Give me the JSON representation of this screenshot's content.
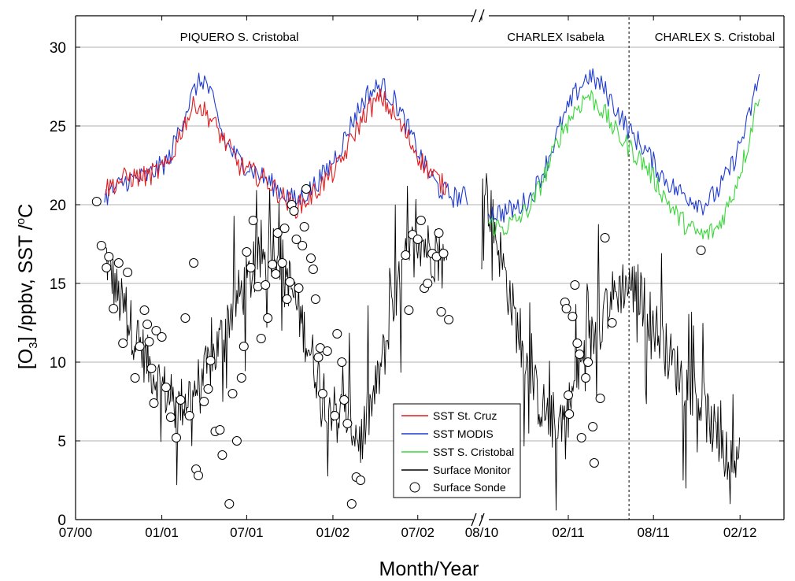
{
  "chart_data": {
    "type": "line",
    "xlabel": "Month/Year",
    "ylabel_parts": [
      "[O",
      "3",
      "] /ppbv, SST /",
      "o",
      "C"
    ],
    "ylim": [
      0,
      32
    ],
    "yticks": [
      0,
      5,
      10,
      15,
      20,
      25,
      30
    ],
    "grid": "horizontal",
    "axis_break": "between 07/02 and 08/10",
    "legend_position": "bottom-center",
    "panels": [
      {
        "label": "PIQUERO S. Cristobal",
        "xlim": [
          "2000-07-01",
          "2002-11-01"
        ]
      },
      {
        "label": "CHARLEX Isabela",
        "xlim": [
          "2010-08-01",
          "2011-06-10"
        ]
      },
      {
        "label": "CHARLEX S. Cristobal",
        "xlim": [
          "2011-06-10",
          "2012-05-01"
        ]
      }
    ],
    "xticks": [
      {
        "label": "07/00",
        "date": "2000-07-01"
      },
      {
        "label": "01/01",
        "date": "2001-01-01"
      },
      {
        "label": "07/01",
        "date": "2001-07-01"
      },
      {
        "label": "01/02",
        "date": "2002-01-01"
      },
      {
        "label": "07/02",
        "date": "2002-07-01"
      },
      {
        "label": "08/10",
        "date": "2010-08-01"
      },
      {
        "label": "02/11",
        "date": "2011-02-01"
      },
      {
        "label": "08/11",
        "date": "2011-08-01"
      },
      {
        "label": "02/12",
        "date": "2012-02-01"
      }
    ],
    "series": [
      {
        "name": "SST St. Cruz",
        "color": "#e41a1c",
        "kind": "line",
        "segments": [
          {
            "x": [
              "2000-09-01",
              "2000-10-15",
              "2000-12-01",
              "2001-01-15",
              "2001-02-15",
              "2001-03-15",
              "2001-04-15",
              "2001-05-15",
              "2001-06-15",
              "2001-07-15",
              "2001-08-15",
              "2001-09-15",
              "2001-10-15",
              "2001-11-15",
              "2001-12-15",
              "2002-01-15",
              "2002-02-15",
              "2002-03-15",
              "2002-04-15",
              "2002-05-15",
              "2002-06-15",
              "2002-07-15",
              "2002-08-15",
              "2002-09-01"
            ],
            "y": [
              21.0,
              21.7,
              21.8,
              22.5,
              25.0,
              26.5,
              25.5,
              24.0,
              22.5,
              22.0,
              21.5,
              20.5,
              19.8,
              20.5,
              21.5,
              22.5,
              24.5,
              26.0,
              26.8,
              25.5,
              24.0,
              22.5,
              21.5,
              21.0
            ]
          }
        ]
      },
      {
        "name": "SST MODIS",
        "color": "#1f3bd0",
        "kind": "line",
        "segments": [
          {
            "x": [
              "2000-09-01",
              "2000-10-15",
              "2000-12-01",
              "2001-01-15",
              "2001-02-15",
              "2001-03-15",
              "2001-04-01",
              "2001-04-15",
              "2001-05-15",
              "2001-06-15",
              "2001-07-15",
              "2001-08-15",
              "2001-09-15",
              "2001-10-15",
              "2001-11-15",
              "2001-12-15",
              "2002-01-15",
              "2002-02-15",
              "2002-03-15",
              "2002-04-15",
              "2002-05-15",
              "2002-06-15",
              "2002-07-15",
              "2002-08-15",
              "2002-09-15",
              "2002-10-15"
            ],
            "y": [
              20.5,
              21.5,
              21.8,
              22.8,
              25.5,
              27.5,
              28.0,
              27.0,
              24.0,
              22.8,
              22.2,
              21.5,
              20.8,
              20.2,
              21.0,
              22.0,
              23.5,
              25.5,
              27.0,
              27.6,
              26.5,
              24.5,
              22.5,
              21.0,
              20.5,
              20.5
            ]
          },
          {
            "x": [
              "2010-08-15",
              "2010-09-15",
              "2010-10-15",
              "2010-11-15",
              "2010-12-15",
              "2011-01-15",
              "2011-02-15",
              "2011-03-15",
              "2011-04-15",
              "2011-05-15",
              "2011-06-15",
              "2011-07-15",
              "2011-08-15",
              "2011-09-15",
              "2011-10-15",
              "2011-11-15",
              "2011-12-15",
              "2012-01-15",
              "2012-02-15",
              "2012-03-15"
            ],
            "y": [
              19.5,
              19.5,
              19.8,
              20.5,
              22.5,
              25.0,
              27.0,
              28.2,
              27.5,
              26.0,
              24.5,
              23.5,
              22.0,
              21.0,
              20.5,
              20.0,
              20.8,
              22.5,
              25.0,
              28.5
            ]
          }
        ]
      },
      {
        "name": "SST S. Cristobal",
        "color": "#3bd63b",
        "kind": "line",
        "segments": [
          {
            "x": [
              "2010-08-15",
              "2010-09-15",
              "2010-10-15",
              "2010-11-15",
              "2010-12-15",
              "2011-01-15",
              "2011-02-15",
              "2011-03-15",
              "2011-04-15",
              "2011-05-15",
              "2011-06-15",
              "2011-07-15",
              "2011-08-15",
              "2011-09-15",
              "2011-10-15",
              "2011-11-15",
              "2011-12-15",
              "2012-01-15",
              "2012-02-15",
              "2012-03-15"
            ],
            "y": [
              18.8,
              18.5,
              19.0,
              20.0,
              22.0,
              24.5,
              26.0,
              27.0,
              26.0,
              24.5,
              23.5,
              22.5,
              21.0,
              19.5,
              18.5,
              18.0,
              18.5,
              20.5,
              23.5,
              27.5
            ]
          }
        ]
      },
      {
        "name": "Surface Monitor",
        "color": "#000000",
        "kind": "line",
        "segments": [
          {
            "x": [
              "2000-09-01",
              "2000-10-01",
              "2000-11-01",
              "2000-12-01",
              "2001-01-01",
              "2001-02-01",
              "2001-03-01",
              "2001-04-01",
              "2001-05-01",
              "2001-06-01",
              "2001-07-01",
              "2001-08-01",
              "2001-09-01",
              "2001-10-01",
              "2001-11-01",
              "2001-12-01",
              "2002-01-01",
              "2002-02-01",
              "2002-03-01",
              "2002-04-01",
              "2002-05-01",
              "2002-06-01",
              "2002-07-01",
              "2002-08-01",
              "2002-09-01"
            ],
            "y": [
              17.0,
              14.0,
              12.0,
              10.0,
              8.5,
              7.0,
              8.0,
              9.0,
              11.0,
              13.5,
              15.0,
              16.5,
              17.5,
              15.0,
              12.0,
              9.0,
              7.0,
              6.5,
              5.0,
              8.0,
              12.0,
              16.0,
              18.0,
              17.0,
              16.0
            ]
          },
          {
            "x": [
              "2010-08-01",
              "2010-09-01",
              "2010-10-01",
              "2010-11-01",
              "2010-12-01",
              "2011-01-01",
              "2011-02-01",
              "2011-03-01",
              "2011-04-01",
              "2011-05-01",
              "2011-06-01",
              "2011-07-01",
              "2011-08-01",
              "2011-09-01",
              "2011-10-01",
              "2011-11-01",
              "2011-12-01",
              "2012-01-01",
              "2012-02-01"
            ],
            "y": [
              22.0,
              18.0,
              14.0,
              10.0,
              7.5,
              6.0,
              7.0,
              10.0,
              12.0,
              14.0,
              15.0,
              14.5,
              12.5,
              10.5,
              9.0,
              8.0,
              6.0,
              4.0,
              2.5
            ]
          }
        ]
      },
      {
        "name": "Surface Sonde",
        "kind": "scatter",
        "marker": "open-circle",
        "points": [
          [
            "2000-08-15",
            20.2
          ],
          [
            "2000-08-25",
            17.4
          ],
          [
            "2000-09-05",
            16.0
          ],
          [
            "2000-09-10",
            16.7
          ],
          [
            "2000-09-20",
            13.4
          ],
          [
            "2000-10-01",
            16.3
          ],
          [
            "2000-10-10",
            11.2
          ],
          [
            "2000-10-20",
            15.7
          ],
          [
            "2000-11-05",
            9.0
          ],
          [
            "2000-11-15",
            11.0
          ],
          [
            "2000-11-25",
            13.3
          ],
          [
            "2000-12-01",
            12.4
          ],
          [
            "2000-12-05",
            11.3
          ],
          [
            "2000-12-10",
            9.6
          ],
          [
            "2000-12-15",
            7.4
          ],
          [
            "2000-12-20",
            12.0
          ],
          [
            "2001-01-01",
            11.6
          ],
          [
            "2001-01-10",
            8.4
          ],
          [
            "2001-01-20",
            6.5
          ],
          [
            "2001-02-01",
            5.2
          ],
          [
            "2001-02-10",
            7.6
          ],
          [
            "2001-02-20",
            12.8
          ],
          [
            "2001-03-01",
            6.6
          ],
          [
            "2001-03-10",
            16.3
          ],
          [
            "2001-03-15",
            3.2
          ],
          [
            "2001-03-20",
            2.8
          ],
          [
            "2001-04-01",
            7.5
          ],
          [
            "2001-04-10",
            8.3
          ],
          [
            "2001-04-15",
            10.1
          ],
          [
            "2001-04-25",
            5.6
          ],
          [
            "2001-05-05",
            5.7
          ],
          [
            "2001-05-10",
            4.1
          ],
          [
            "2001-05-25",
            1.0
          ],
          [
            "2001-06-01",
            8.0
          ],
          [
            "2001-06-10",
            5.0
          ],
          [
            "2001-06-20",
            9.0
          ],
          [
            "2001-06-25",
            11.0
          ],
          [
            "2001-07-01",
            17.0
          ],
          [
            "2001-07-10",
            16.0
          ],
          [
            "2001-07-15",
            19.0
          ],
          [
            "2001-07-25",
            14.8
          ],
          [
            "2001-08-01",
            11.5
          ],
          [
            "2001-08-10",
            14.9
          ],
          [
            "2001-08-15",
            12.8
          ],
          [
            "2001-08-25",
            16.2
          ],
          [
            "2001-09-01",
            15.6
          ],
          [
            "2001-09-05",
            18.2
          ],
          [
            "2001-09-15",
            16.3
          ],
          [
            "2001-09-20",
            18.5
          ],
          [
            "2001-09-25",
            14.0
          ],
          [
            "2001-10-01",
            15.1
          ],
          [
            "2001-10-05",
            20.0
          ],
          [
            "2001-10-10",
            19.6
          ],
          [
            "2001-10-15",
            17.8
          ],
          [
            "2001-10-20",
            14.7
          ],
          [
            "2001-10-28",
            17.4
          ],
          [
            "2001-11-01",
            18.6
          ],
          [
            "2001-11-05",
            21.0
          ],
          [
            "2001-11-15",
            16.6
          ],
          [
            "2001-11-20",
            15.9
          ],
          [
            "2001-11-25",
            14.0
          ],
          [
            "2001-12-01",
            10.3
          ],
          [
            "2001-12-05",
            10.9
          ],
          [
            "2001-12-10",
            8.0
          ],
          [
            "2001-12-20",
            10.7
          ],
          [
            "2002-01-05",
            6.6
          ],
          [
            "2002-01-10",
            11.8
          ],
          [
            "2002-01-20",
            10.0
          ],
          [
            "2002-01-25",
            7.6
          ],
          [
            "2002-02-01",
            6.1
          ],
          [
            "2002-02-10",
            1.0
          ],
          [
            "2002-02-20",
            2.7
          ],
          [
            "2002-03-01",
            2.5
          ],
          [
            "2002-06-05",
            16.8
          ],
          [
            "2002-06-12",
            13.3
          ],
          [
            "2002-06-20",
            18.1
          ],
          [
            "2002-07-01",
            17.8
          ],
          [
            "2002-07-08",
            19.0
          ],
          [
            "2002-07-15",
            14.7
          ],
          [
            "2002-07-22",
            15.0
          ],
          [
            "2002-08-01",
            16.9
          ],
          [
            "2002-08-10",
            16.7
          ],
          [
            "2002-08-15",
            18.2
          ],
          [
            "2002-08-20",
            13.2
          ],
          [
            "2002-08-25",
            16.9
          ],
          [
            "2002-09-05",
            12.7
          ],
          [
            "2011-01-25",
            13.8
          ],
          [
            "2011-01-28",
            13.4
          ],
          [
            "2011-02-01",
            7.9
          ],
          [
            "2011-02-03",
            6.7
          ],
          [
            "2011-02-10",
            12.9
          ],
          [
            "2011-02-15",
            14.9
          ],
          [
            "2011-02-20",
            11.2
          ],
          [
            "2011-02-25",
            10.5
          ],
          [
            "2011-03-01",
            5.2
          ],
          [
            "2011-03-10",
            9.0
          ],
          [
            "2011-03-15",
            10.0
          ],
          [
            "2011-03-25",
            5.9
          ],
          [
            "2011-03-28",
            3.6
          ],
          [
            "2011-04-10",
            7.7
          ],
          [
            "2011-04-20",
            17.9
          ],
          [
            "2011-05-05",
            12.5
          ],
          [
            "2011-11-10",
            17.1
          ]
        ]
      }
    ]
  }
}
